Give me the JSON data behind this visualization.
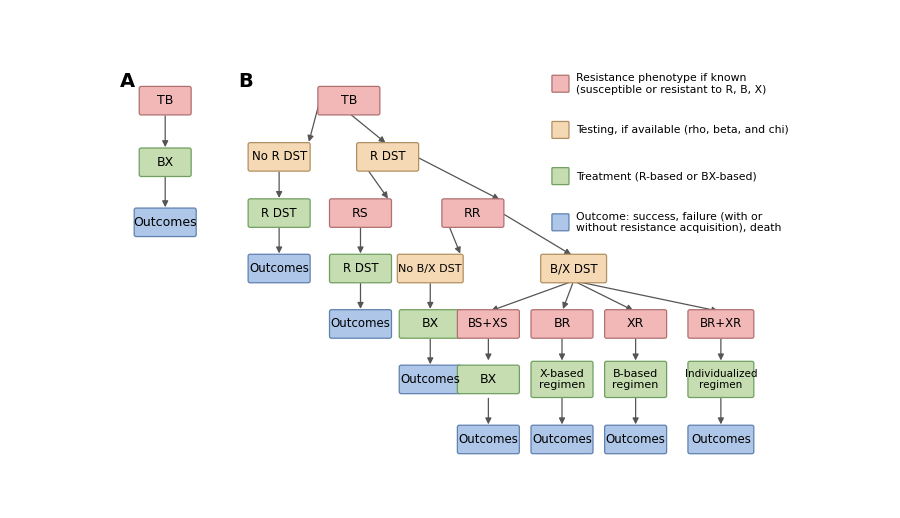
{
  "colors": {
    "pink": "#f2b8b8",
    "peach": "#f5d9b5",
    "green": "#c5ddb0",
    "blue": "#aec6e8",
    "pink_edge": "#b07070",
    "peach_edge": "#b09060",
    "green_edge": "#70a060",
    "blue_edge": "#6080b0",
    "arrow": "#555555",
    "text": "#000000",
    "bg": "#ffffff"
  },
  "legend": {
    "pink_label": "Resistance phenotype if known\n(susceptible or resistant to R, B, X)",
    "peach_label": "Testing, if available (rho, beta, and chi)",
    "green_label": "Treatment (R-based or BX-based)",
    "blue_label": "Outcome: success, failure (with or\nwithout resistance acquisition), death"
  },
  "label_A": "A",
  "label_B": "B"
}
